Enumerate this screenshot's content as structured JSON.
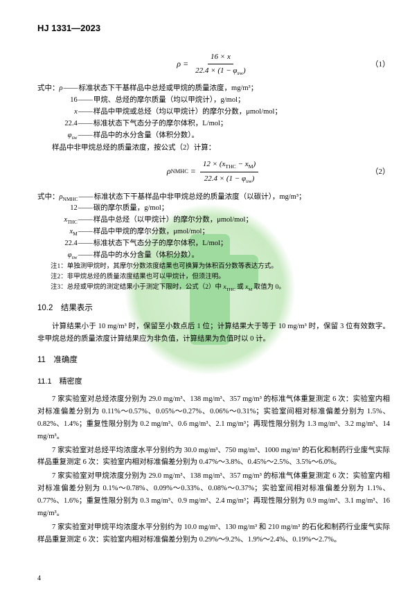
{
  "header": "HJ 1331—2023",
  "formula1": {
    "lhs": "ρ",
    "num": "16 × x",
    "den": "22.4 × (1 − φ_sw)",
    "eqnum": "（1）"
  },
  "where_intro": "式中：",
  "where1": [
    {
      "sym": "ρ",
      "def": "标准状态下干基样品中总烃或甲烷的质量浓度，mg/m³；"
    },
    {
      "sym": "16",
      "def": "甲烷、总烃的摩尔质量（均以甲烷计），g/mol；"
    },
    {
      "sym": "x",
      "def": "样品中甲烷或总烃（均以甲烷计）的摩尔分数，μmol/mol；"
    },
    {
      "sym": "22.4",
      "def": "标准状态下气态分子的摩尔体积，L/mol；"
    },
    {
      "sym": "φ_sw",
      "def": "样品中的水分含量（体积分数）。"
    }
  ],
  "line_calc": "样品中非甲烷总烃的质量浓度，按公式（2）计算：",
  "formula2": {
    "lhs": "ρ_NMHC",
    "num": "12 × (x_THC − x_M)",
    "den": "22.4 × (1 − φ_sw)",
    "eqnum": "（2）"
  },
  "where2": [
    {
      "sym": "ρ_NMHC",
      "def": "标准状态下干基样品中非甲烷总烃的质量浓度（以碳计），mg/m³；"
    },
    {
      "sym": "12",
      "def": "碳的摩尔质量，g/mol；"
    },
    {
      "sym": "x_THC",
      "def": "样品中总烃（以甲烷计）的摩尔分数，μmol/mol；"
    },
    {
      "sym": "x_M",
      "def": "样品中甲烷的摩尔分数，μmol/mol；"
    },
    {
      "sym": "22.4",
      "def": "标准状态下气态分子的摩尔体积，L/mol；"
    },
    {
      "sym": "φ_sw",
      "def": "样品中的水分含量（体积分数）。"
    }
  ],
  "notes": [
    "注1：单独测甲烷时，其摩尔分数浓度结果也可换算为体积百分数等表达方式。",
    "注2：非甲烷总烃的质量浓度结果也可以甲烷计，但须注明。",
    "注3：总烃或甲烷的测定结果小于测定下限时，公式（2）中 x_THC 或 x_M 取值为 0。"
  ],
  "h10_2": "10.2　结果表示",
  "p10_2": "计算结果小于 10 mg/m³ 时，保留至小数点后 1 位；计算结果大于等于 10 mg/m³ 时，保留 3 位有效数字。非甲烷总烃的质量浓度计算结果应为非负值，计算结果为负值时以 0 计。",
  "h11": "11　准确度",
  "h11_1": "11.1　精密度",
  "p1": "7 家实验室对总烃浓度分别为 29.0 mg/m³、138 mg/m³、357 mg/m³ 的标准气体重复测定 6 次：实验室内相对标准偏差分别为 0.11%～0.57%、0.05%～0.27%、0.06%～0.31%；实验室间相对标准偏差分别为 1.5%、0.82%、1.4%；重复性限分别为 0.2 mg/m³、0.6 mg/m³、2.1 mg/m³；再现性限分别为 1.3 mg/m³、3.2 mg/m³、14 mg/m³。",
  "p2": "7 家实验室对总烃平均浓度水平分别约为 30.0 mg/m³、750 mg/m³、1000 mg/m³ 的石化和制药行业废气实际样品重复测定 6 次：实验室内相对标准偏差分别为 0.47%～3.8%、0.45%～2.5%、3.5%～6.0%。",
  "p3": "7 家实验室对甲烷浓度分别为 29.0 mg/m³、138 mg/m³、357 mg/m³ 的标准气体重复测定 6 次：实验室内相对标准偏差分别为 0.1%～0.78%、0.09%～0.33%、0.08%～0.37%；实验室间相对标准偏差分别为 1.1%、0.77%、1.6%；重复性限分别为 0.3 mg/m³、0.9 mg/m³、2.4 mg/m³；再现性限分别为 0.9 mg/m³、3.1 mg/m³、16 mg/m³。",
  "p4": "7 家实验室对甲烷平均浓度水平分别约为 10.0 mg/m³、130 mg/m³ 和 210 mg/m³ 的石化和制药行业废气实际样品重复测定 6 次：实验室内相对标准偏差分别为 0.29%～9.2%、1.9%～2.4%、0.19%～2.7%。",
  "pagenum": "4"
}
